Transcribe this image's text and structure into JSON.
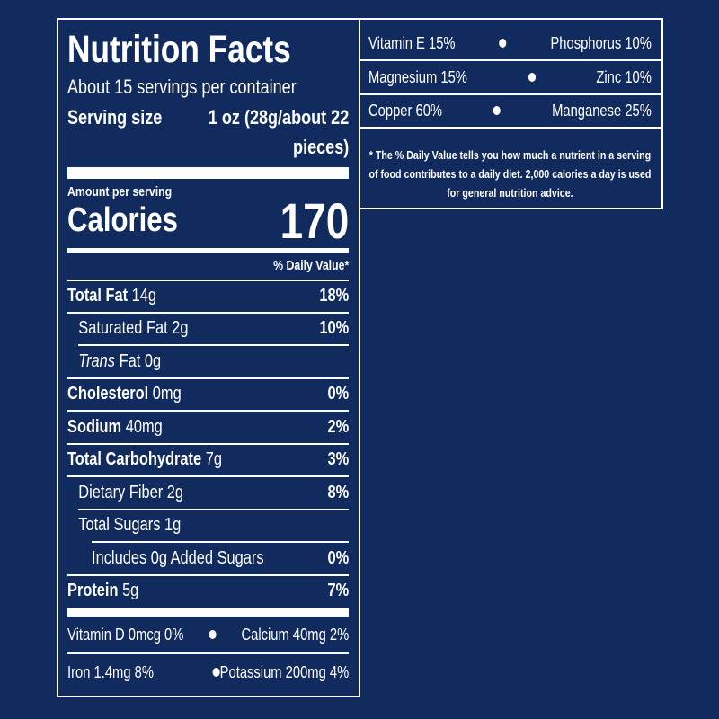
{
  "title": "Nutrition Facts",
  "servings": "About 15 servings per container",
  "serving_size": {
    "label": "Serving size",
    "value": "1 oz (28g/about 22 pieces)"
  },
  "amount_per_serving": "Amount per serving",
  "calories": {
    "label": "Calories",
    "value": "170"
  },
  "daily_value_header": "% Daily Value*",
  "nutrients": [
    {
      "name": "Total Fat",
      "amount": "14g",
      "dv": "18%"
    },
    {
      "name": "Saturated Fat",
      "amount": "2g",
      "dv": "10%"
    },
    {
      "name": "Trans",
      "amount": "Fat 0g"
    },
    {
      "name": "Cholesterol",
      "amount": "0mg",
      "dv": "0%"
    },
    {
      "name": "Sodium",
      "amount": "40mg",
      "dv": "2%"
    },
    {
      "name": "Total Carbohydrate",
      "amount": "7g",
      "dv": "3%"
    },
    {
      "name": "Dietary Fiber",
      "amount": "2g",
      "dv": "8%"
    },
    {
      "name": "Total Sugars",
      "amount": "1g"
    },
    {
      "name": "Includes 0g Added Sugars",
      "dv": "0%"
    },
    {
      "name": "Protein",
      "amount": "5g",
      "dv": "7%"
    }
  ],
  "vitamins": [
    [
      "Vitamin D 0mcg 0%",
      "Calcium 40mg 2%"
    ],
    [
      "Iron 1.4mg 8%",
      "Potassium 200mg 4%"
    ]
  ],
  "more_vitamins": [
    [
      "Vitamin E 15%",
      "Phosphorus 10%"
    ],
    [
      "Magnesium 15%",
      "Zinc 10%"
    ],
    [
      "Copper 60%",
      "Manganese 25%"
    ]
  ],
  "footnote": "* The % Daily Value tells you how much a nutrient in a serving of food contributes to a daily diet. 2,000 calories a day is used for general nutrition advice."
}
